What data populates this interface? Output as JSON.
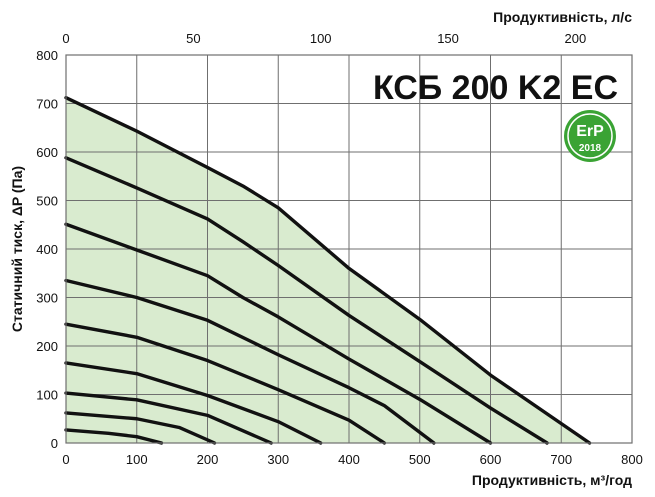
{
  "chart_data": {
    "type": "line",
    "title": "КСБ 200 K2 EC",
    "xlabel": "Продуктивність, м³/год",
    "x2label": "Продуктивність, л/с",
    "ylabel": "Статичний тиск, ΔP (Па)",
    "xlim": [
      0,
      800
    ],
    "ylim": [
      0,
      800
    ],
    "x2lim": [
      0,
      222.2222
    ],
    "x_ticks": [
      "0",
      "100",
      "200",
      "300",
      "400",
      "500",
      "600",
      "700",
      "800"
    ],
    "x2_ticks": [
      "0",
      "50",
      "100",
      "150",
      "200"
    ],
    "y_ticks": [
      "0",
      "100",
      "200",
      "300",
      "400",
      "500",
      "600",
      "700",
      "800"
    ],
    "grid": true,
    "fill_color": "#d9ebcf",
    "curve_color": "#111111",
    "series": [
      {
        "x": [
          0,
          100,
          200,
          250,
          300,
          400,
          500,
          600,
          740
        ],
        "y": [
          712,
          643,
          568,
          530,
          485,
          360,
          255,
          140,
          0
        ]
      },
      {
        "x": [
          0,
          100,
          200,
          250,
          300,
          400,
          500,
          600,
          680
        ],
        "y": [
          588,
          526,
          462,
          415,
          366,
          263,
          168,
          72,
          0
        ]
      },
      {
        "x": [
          0,
          100,
          200,
          250,
          300,
          400,
          500,
          600
        ],
        "y": [
          451,
          398,
          345,
          300,
          260,
          173,
          90,
          0
        ]
      },
      {
        "x": [
          0,
          100,
          200,
          300,
          400,
          450,
          520
        ],
        "y": [
          335,
          300,
          253,
          182,
          114,
          77,
          0
        ]
      },
      {
        "x": [
          0,
          100,
          200,
          300,
          400,
          450
        ],
        "y": [
          245,
          218,
          170,
          110,
          47,
          0
        ]
      },
      {
        "x": [
          0,
          100,
          200,
          300,
          360
        ],
        "y": [
          165,
          143,
          98,
          44,
          0
        ]
      },
      {
        "x": [
          0,
          100,
          200,
          290
        ],
        "y": [
          103,
          89,
          57,
          0
        ]
      },
      {
        "x": [
          0,
          100,
          160,
          210
        ],
        "y": [
          62,
          50,
          32,
          0
        ]
      },
      {
        "x": [
          0,
          60,
          100,
          135
        ],
        "y": [
          27,
          20,
          13,
          0
        ]
      }
    ],
    "badge": {
      "label": "ErP",
      "year": "2018",
      "color": "#3aa334"
    }
  }
}
